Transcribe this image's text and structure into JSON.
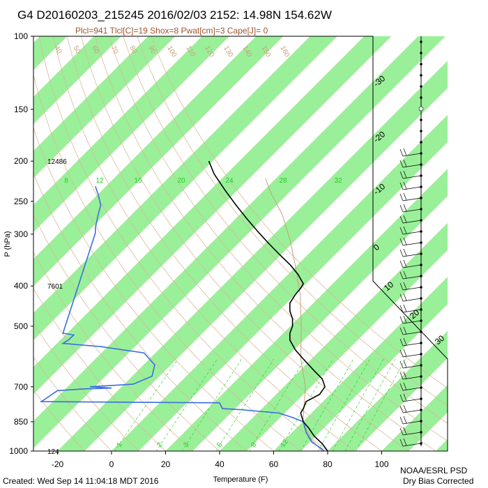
{
  "header": {
    "title": "G4 D20160203_215245 2016/02/03 2152: 14.98N 154.62W",
    "params": "Plcl=941 Tlcl[C]=19 Shox=8 Pwat[cm]=3 Cape[J]= 0"
  },
  "footer": {
    "created": "Created: Wed Sep 14 11:04:18 MDT 2016",
    "org": "NOAA/ESRL PSD",
    "note": "Dry Bias Corrected"
  },
  "colors": {
    "band": "#99f099",
    "temperature": "#000000",
    "dewpoint": "#3b6ee0",
    "isotherm_label": "#c8a07a",
    "mixing_ratio": "#22cc22",
    "params_text": "#a0522d"
  },
  "chart_data": {
    "type": "line",
    "subtype": "skew-T log-P sounding",
    "xlabel": "Temperature (F)",
    "ylabel": "P (hPa)",
    "xlim": [
      -28,
      108
    ],
    "ylim": [
      1050,
      100
    ],
    "y_scale": "log",
    "x_ticks": [
      -20,
      0,
      20,
      40,
      60,
      80,
      100
    ],
    "y_ticks": [
      100,
      150,
      200,
      250,
      300,
      400,
      500,
      700,
      850,
      1000
    ],
    "height_labels": [
      {
        "p": 200,
        "text": "12486"
      },
      {
        "p": 400,
        "text": "7601"
      },
      {
        "p": 1000,
        "text": "124"
      }
    ],
    "isotherm_labels": [
      "40",
      "50",
      "60",
      "70",
      "80",
      "90",
      "100",
      "110",
      "120",
      "130",
      "140",
      "150",
      "160"
    ],
    "celsius_labels": [
      "-30",
      "-20",
      "-10",
      "0",
      "10",
      "20",
      "30"
    ],
    "mixing_ratio_labels_top": [
      "8",
      "12",
      "16",
      "20",
      "24",
      "28",
      "32"
    ],
    "mixing_ratio_labels_bottom": [
      "1",
      "2",
      "3",
      "5",
      "8",
      "12"
    ],
    "series": [
      {
        "name": "temperature",
        "points": [
          [
            36,
            200
          ],
          [
            38,
            215
          ],
          [
            42,
            235
          ],
          [
            46,
            255
          ],
          [
            50,
            275
          ],
          [
            54,
            295
          ],
          [
            58,
            315
          ],
          [
            62,
            335
          ],
          [
            66,
            355
          ],
          [
            69,
            375
          ],
          [
            71,
            395
          ],
          [
            70,
            405
          ],
          [
            68,
            420
          ],
          [
            66,
            440
          ],
          [
            66,
            460
          ],
          [
            67,
            480
          ],
          [
            67,
            500
          ],
          [
            66,
            520
          ],
          [
            66,
            540
          ],
          [
            68,
            570
          ],
          [
            71,
            600
          ],
          [
            75,
            640
          ],
          [
            78,
            670
          ],
          [
            79,
            700
          ],
          [
            77,
            730
          ],
          [
            72,
            760
          ],
          [
            71,
            790
          ],
          [
            70,
            810
          ],
          [
            71,
            850
          ],
          [
            73,
            880
          ],
          [
            75,
            920
          ],
          [
            78,
            960
          ],
          [
            80,
            1000
          ]
        ]
      },
      {
        "name": "dewpoint",
        "points": [
          [
            -6,
            230
          ],
          [
            -5,
            240
          ],
          [
            -4,
            255
          ],
          [
            -5,
            270
          ],
          [
            -6,
            290
          ],
          [
            -6,
            298
          ],
          [
            -18,
            520
          ],
          [
            -14,
            525
          ],
          [
            -16,
            540
          ],
          [
            -18,
            550
          ],
          [
            -4,
            560
          ],
          [
            12,
            580
          ],
          [
            16,
            620
          ],
          [
            15,
            660
          ],
          [
            8,
            690
          ],
          [
            -8,
            700
          ],
          [
            0,
            705
          ],
          [
            -10,
            708
          ],
          [
            -20,
            715
          ],
          [
            -26,
            760
          ],
          [
            40,
            765
          ],
          [
            41,
            790
          ],
          [
            48,
            795
          ],
          [
            62,
            810
          ],
          [
            67,
            830
          ],
          [
            71,
            850
          ],
          [
            72,
            900
          ],
          [
            74,
            950
          ],
          [
            78,
            990
          ],
          [
            79,
            1005
          ]
        ]
      }
    ],
    "wind_barbs": "present along right margin from 100 to 1000 hPa"
  }
}
